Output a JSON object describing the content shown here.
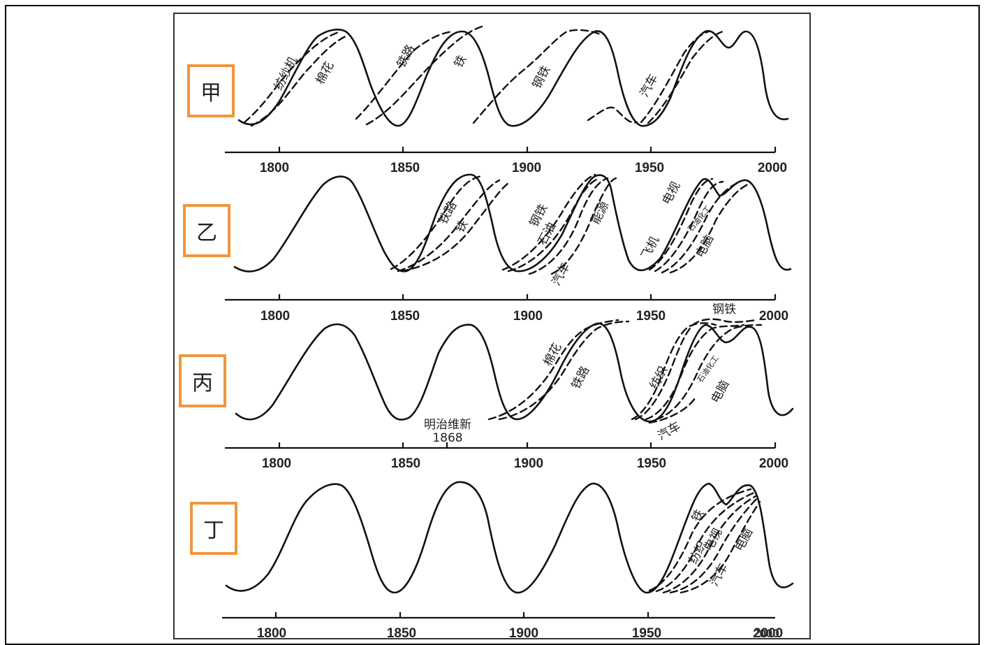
{
  "panel_labels": [
    "甲",
    "乙",
    "丙",
    "丁"
  ],
  "axis_ticks": [
    [
      "1800",
      "1850",
      "1900",
      "1950",
      "2000"
    ],
    [
      "1800",
      "1850",
      "1900",
      "1950",
      "2000"
    ],
    [
      "1800",
      "1850",
      "1900",
      "1950",
      "2000"
    ],
    [
      "1800",
      "1850",
      "1900",
      "1950",
      "2000"
    ]
  ],
  "annotations": {
    "p0": [
      "纺纱机",
      "棉花",
      "铁路",
      "铁",
      "钢铁",
      "汽车"
    ],
    "p1": [
      "铁路",
      "铁",
      "钢铁",
      "石油",
      "汽车",
      "能源",
      "电视",
      "飞机",
      "石油化工",
      "电脑"
    ],
    "p2": [
      "棉花",
      "铁路",
      "明治维新",
      "1868",
      "钢铁",
      "纺织",
      "石油化工",
      "电脑",
      "汽车"
    ],
    "p3": [
      "铁",
      "电视",
      "纺织",
      "汽车",
      "电脑"
    ]
  },
  "watermark": "2000"
}
